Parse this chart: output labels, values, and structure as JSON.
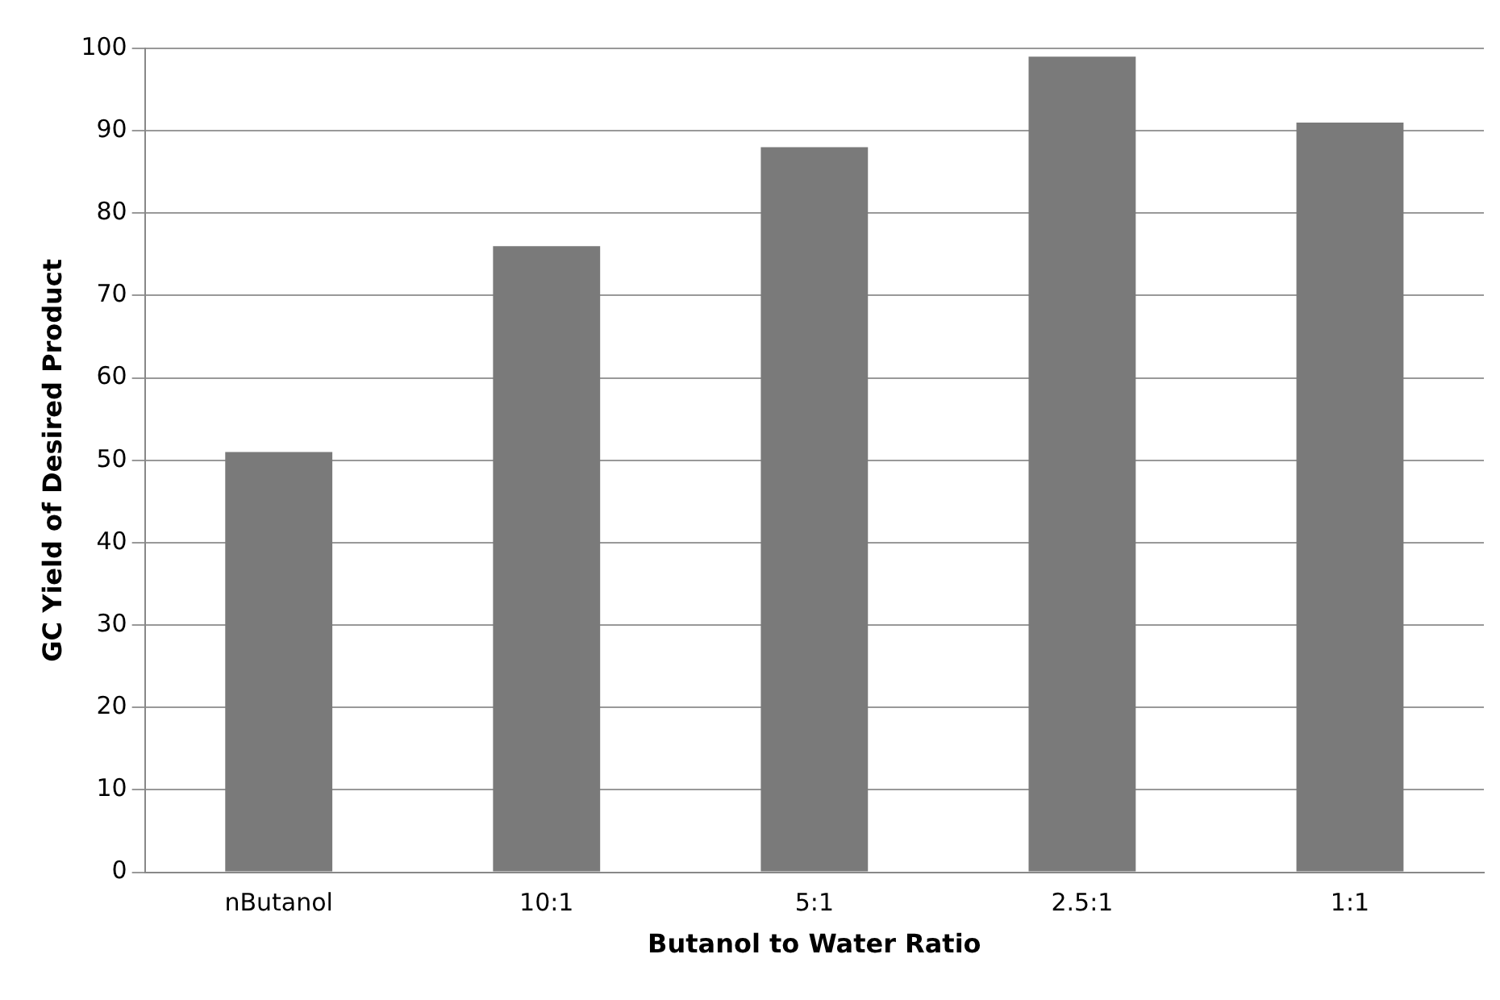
{
  "chart_data": {
    "type": "bar",
    "xlabel": "Butanol to Water Ratio",
    "ylabel": "GC Yield of Desired Product",
    "categories": [
      "nButanol",
      "10:1",
      "5:1",
      "2.5:1",
      "1:1"
    ],
    "values": [
      51,
      76,
      88,
      99,
      91
    ],
    "color": "#7a7a7a",
    "ylim": [
      0,
      100
    ],
    "yticks": [
      0,
      10,
      20,
      30,
      40,
      50,
      60,
      70,
      80,
      90,
      100
    ],
    "grid": "y",
    "legend": false
  }
}
